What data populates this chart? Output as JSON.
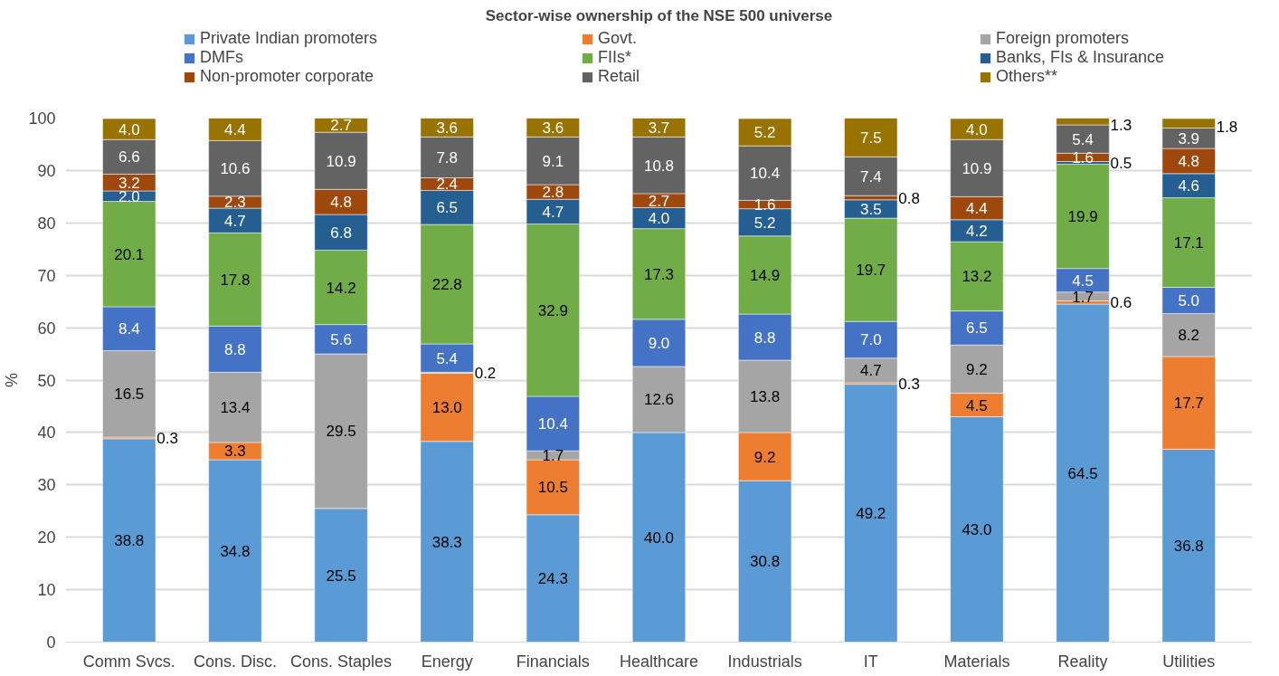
{
  "chart_data": {
    "type": "bar",
    "stacked": true,
    "title": "Sector-wise ownership of the NSE 500 universe",
    "ylabel": "%",
    "categories": [
      "Comm Svcs.",
      "Cons. Disc.",
      "Cons. Staples",
      "Energy",
      "Financials",
      "Healthcare",
      "Industrials",
      "IT",
      "Materials",
      "Reality",
      "Utilities"
    ],
    "series": [
      {
        "name": "Private Indian promoters",
        "color": "#5b9bd5",
        "values": [
          38.8,
          34.8,
          25.5,
          38.3,
          24.3,
          40.0,
          30.8,
          49.2,
          43.0,
          64.5,
          36.8
        ],
        "value_labels": [
          "38.8",
          "34.8",
          "25.5",
          "38.3",
          "24.3",
          "40.0",
          "30.8",
          "49.2",
          "43.0",
          "64.5",
          "36.8"
        ]
      },
      {
        "name": "Govt.",
        "color": "#ed7d31",
        "values": [
          0.3,
          3.3,
          null,
          13.0,
          10.5,
          null,
          9.2,
          0.3,
          4.5,
          0.6,
          17.7
        ],
        "value_labels": [
          "0.3",
          "3.3",
          null,
          "13.0",
          "10.5",
          null,
          "9.2",
          "0.3",
          "4.5",
          "0.6",
          "17.7"
        ]
      },
      {
        "name": "Foreign promoters",
        "color": "#a5a5a5",
        "values": [
          16.5,
          13.4,
          29.5,
          0.2,
          1.7,
          12.6,
          13.8,
          4.7,
          9.2,
          1.7,
          8.2
        ],
        "value_labels": [
          "16.5",
          "13.4",
          "29.5",
          "0.2",
          "1.7",
          "12.6",
          "13.8",
          "4.7",
          "9.2",
          "1.7",
          "8.2"
        ]
      },
      {
        "name": "DMFs",
        "color": "#4472c4",
        "values": [
          8.4,
          8.8,
          5.6,
          5.4,
          10.4,
          9.0,
          8.8,
          7.0,
          6.5,
          4.5,
          5.0
        ],
        "value_labels": [
          "8.4",
          "8.8",
          "5.6",
          "5.4",
          "10.4",
          "9.0",
          "8.8",
          "7.0",
          "6.5",
          "4.5",
          "5.0"
        ]
      },
      {
        "name": "FIIs*",
        "color": "#70ad47",
        "values": [
          20.1,
          17.8,
          14.2,
          22.8,
          32.9,
          17.3,
          14.9,
          19.7,
          13.2,
          19.9,
          17.1
        ],
        "value_labels": [
          "20.1",
          "17.8",
          "14.2",
          "22.8",
          "32.9",
          "17.3",
          "14.9",
          "19.7",
          "13.2",
          "19.9",
          "17.1"
        ]
      },
      {
        "name": "Banks, FIs & Insurance",
        "color": "#255e91",
        "values": [
          2.0,
          4.7,
          6.8,
          6.5,
          4.7,
          4.0,
          5.2,
          3.5,
          4.2,
          0.5,
          4.6
        ],
        "value_labels": [
          "2.0",
          "4.7",
          "6.8",
          "6.5",
          "4.7",
          "4.0",
          "5.2",
          "3.5",
          "4.2",
          "0.5",
          "4.6"
        ]
      },
      {
        "name": "Non-promoter corporate",
        "color": "#9e480e",
        "values": [
          3.2,
          2.3,
          4.8,
          2.4,
          2.8,
          2.7,
          1.6,
          0.8,
          4.4,
          1.6,
          4.8
        ],
        "value_labels": [
          "3.2",
          "2.3",
          "4.8",
          "2.4",
          "2.8",
          "2.7",
          "1.6",
          "0.8",
          "4.4",
          "1.6",
          "4.8"
        ]
      },
      {
        "name": "Retail",
        "color": "#636363",
        "values": [
          6.6,
          10.6,
          10.9,
          7.8,
          9.1,
          10.8,
          10.4,
          7.4,
          10.9,
          5.4,
          3.9
        ],
        "value_labels": [
          "6.6",
          "10.6",
          "10.9",
          "7.8",
          "9.1",
          "10.8",
          "10.4",
          "7.4",
          "10.9",
          "5.4",
          "3.9"
        ]
      },
      {
        "name": "Others**",
        "color": "#997300",
        "values": [
          4.0,
          4.4,
          2.7,
          3.6,
          3.6,
          3.7,
          5.2,
          7.5,
          4.0,
          1.3,
          1.8
        ],
        "value_labels": [
          "4.0",
          "4.4",
          "2.7",
          "3.6",
          "3.6",
          "3.7",
          "5.2",
          "7.5",
          "4.0",
          "1.3",
          "1.8"
        ]
      }
    ],
    "ylim": [
      0,
      100
    ],
    "yticks": [
      0,
      10,
      20,
      30,
      40,
      50,
      60,
      70,
      80,
      90,
      100
    ],
    "grid": "y",
    "legend": "top"
  }
}
